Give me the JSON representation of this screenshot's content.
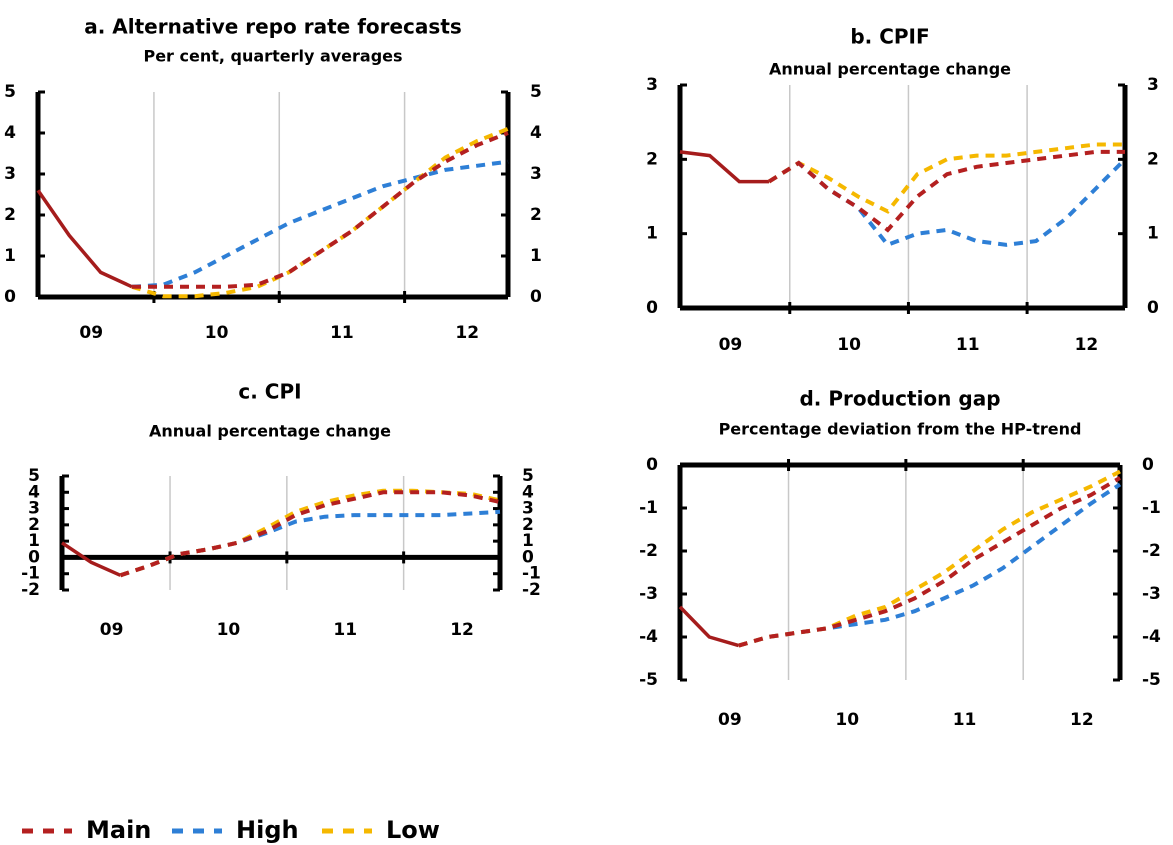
{
  "chart_data": [
    {
      "type": "line",
      "title": "a. Alternative repo rate forecasts",
      "subtitle": "Per cent, quarterly averages",
      "categories": [
        null,
        null,
        "09",
        null,
        null,
        null,
        "10",
        null,
        null,
        null,
        "11",
        null,
        null,
        null,
        "12",
        null
      ],
      "ylim": [
        0,
        5
      ],
      "yticks": [
        0,
        1,
        2,
        3,
        4,
        5
      ],
      "grid": true,
      "series": [
        {
          "color": "#a51c1c",
          "dashed": false,
          "values": [
            2.6,
            1.5,
            0.6,
            0.25,
            null,
            null,
            null,
            null,
            null,
            null,
            null,
            null,
            null,
            null,
            null,
            null
          ]
        },
        {
          "color": "#2e7fd6",
          "dashed": true,
          "values": [
            null,
            null,
            null,
            0.25,
            0.3,
            0.6,
            1.0,
            1.4,
            1.8,
            2.1,
            2.4,
            2.7,
            2.9,
            3.1,
            3.2,
            3.3
          ]
        },
        {
          "color": "#f5b800",
          "dashed": true,
          "values": [
            null,
            null,
            null,
            0.25,
            0.02,
            0.02,
            0.1,
            0.25,
            0.6,
            1.1,
            1.6,
            2.2,
            2.8,
            3.4,
            3.8,
            4.1
          ]
        },
        {
          "color": "#b42020",
          "dashed": true,
          "values": [
            null,
            null,
            null,
            0.25,
            0.25,
            0.25,
            0.25,
            0.3,
            0.6,
            1.1,
            1.6,
            2.2,
            2.8,
            3.3,
            3.7,
            4.0
          ]
        }
      ]
    },
    {
      "type": "line",
      "title": "b. CPIF",
      "subtitle": "Annual percentage change",
      "categories": [
        null,
        null,
        "09",
        null,
        null,
        null,
        "10",
        null,
        null,
        null,
        "11",
        null,
        null,
        null,
        "12",
        null
      ],
      "ylim": [
        0,
        3
      ],
      "yticks": [
        0,
        1,
        2,
        3
      ],
      "grid": true,
      "series": [
        {
          "color": "#a51c1c",
          "dashed": false,
          "values": [
            2.1,
            2.05,
            1.7,
            1.7,
            null,
            null,
            null,
            null,
            null,
            null,
            null,
            null,
            null,
            null,
            null,
            null
          ]
        },
        {
          "color": "#2e7fd6",
          "dashed": true,
          "values": [
            null,
            null,
            null,
            1.7,
            1.95,
            1.6,
            1.35,
            0.85,
            1.0,
            1.05,
            0.9,
            0.85,
            0.9,
            1.2,
            1.6,
            2.0
          ]
        },
        {
          "color": "#f5b800",
          "dashed": true,
          "values": [
            null,
            null,
            null,
            1.7,
            1.95,
            1.75,
            1.5,
            1.3,
            1.8,
            2.0,
            2.05,
            2.05,
            2.1,
            2.15,
            2.2,
            2.2
          ]
        },
        {
          "color": "#b42020",
          "dashed": true,
          "values": [
            null,
            null,
            null,
            1.7,
            1.95,
            1.6,
            1.35,
            1.05,
            1.5,
            1.8,
            1.9,
            1.95,
            2.0,
            2.05,
            2.1,
            2.1
          ]
        }
      ]
    },
    {
      "type": "line",
      "title": "c. CPI",
      "subtitle": "Annual percentage change",
      "categories": [
        null,
        null,
        "09",
        null,
        null,
        null,
        "10",
        null,
        null,
        null,
        "11",
        null,
        null,
        null,
        "12",
        null
      ],
      "ylim": [
        -2,
        5
      ],
      "yticks": [
        -2,
        -1,
        0,
        1,
        2,
        3,
        4,
        5
      ],
      "grid": true,
      "series": [
        {
          "color": "#a51c1c",
          "dashed": false,
          "values": [
            0.9,
            -0.3,
            -1.1,
            null,
            null,
            null,
            null,
            null,
            null,
            null,
            null,
            null,
            null,
            null,
            null,
            null
          ]
        },
        {
          "color": "#2e7fd6",
          "dashed": true,
          "values": [
            null,
            null,
            -1.1,
            -0.5,
            0.2,
            0.5,
            0.9,
            1.5,
            2.2,
            2.5,
            2.6,
            2.6,
            2.6,
            2.6,
            2.7,
            2.8
          ]
        },
        {
          "color": "#f5b800",
          "dashed": true,
          "values": [
            null,
            null,
            -1.1,
            -0.5,
            0.2,
            0.5,
            0.9,
            1.8,
            2.8,
            3.4,
            3.8,
            4.1,
            4.1,
            4.0,
            3.9,
            3.5
          ]
        },
        {
          "color": "#b42020",
          "dashed": true,
          "values": [
            null,
            null,
            -1.1,
            -0.5,
            0.2,
            0.5,
            0.9,
            1.6,
            2.6,
            3.2,
            3.6,
            4.0,
            4.0,
            4.0,
            3.8,
            3.4
          ]
        }
      ]
    },
    {
      "type": "line",
      "title": "d. Production gap",
      "subtitle": "Percentage deviation from the HP-trend",
      "categories": [
        null,
        null,
        "09",
        null,
        null,
        null,
        "10",
        null,
        null,
        null,
        "11",
        null,
        null,
        null,
        "12",
        null
      ],
      "ylim": [
        -5,
        0
      ],
      "yticks": [
        -5,
        -4,
        -3,
        -2,
        -1,
        0
      ],
      "grid": true,
      "series": [
        {
          "color": "#a51c1c",
          "dashed": false,
          "values": [
            -3.3,
            -4.0,
            -4.2,
            null,
            null,
            null,
            null,
            null,
            null,
            null,
            null,
            null,
            null,
            null,
            null,
            null
          ]
        },
        {
          "color": "#2e7fd6",
          "dashed": true,
          "values": [
            null,
            null,
            -4.2,
            -4.0,
            -3.9,
            -3.8,
            -3.7,
            -3.6,
            -3.4,
            -3.1,
            -2.8,
            -2.4,
            -1.9,
            -1.4,
            -0.9,
            -0.45
          ]
        },
        {
          "color": "#f5b800",
          "dashed": true,
          "values": [
            null,
            null,
            -4.2,
            -4.0,
            -3.9,
            -3.8,
            -3.5,
            -3.3,
            -2.9,
            -2.5,
            -2.0,
            -1.5,
            -1.1,
            -0.8,
            -0.5,
            -0.15
          ]
        },
        {
          "color": "#b42020",
          "dashed": true,
          "values": [
            null,
            null,
            -4.2,
            -4.0,
            -3.9,
            -3.8,
            -3.6,
            -3.4,
            -3.1,
            -2.7,
            -2.2,
            -1.8,
            -1.4,
            -1.0,
            -0.7,
            -0.3
          ]
        }
      ]
    }
  ],
  "legend": [
    {
      "name": "Main",
      "color": "#b42020"
    },
    {
      "name": "High",
      "color": "#2e7fd6"
    },
    {
      "name": "Low",
      "color": "#f5b800"
    }
  ]
}
